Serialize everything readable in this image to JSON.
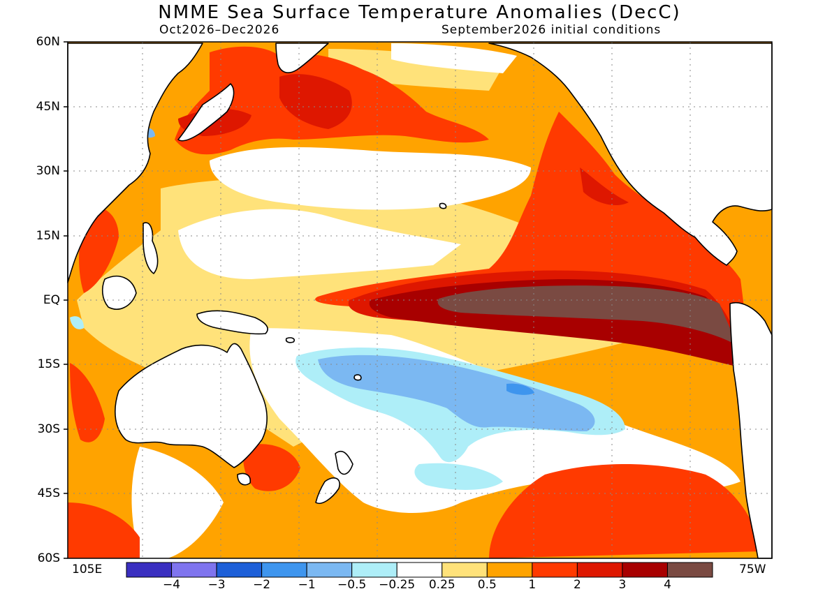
{
  "title": "NMME Sea Surface Temperature Anomalies (DecC)",
  "subtitle_left": "Oct2026–Dec2026",
  "subtitle_right": "September2026 initial conditions",
  "axes": {
    "lat_labels": [
      "60N",
      "45N",
      "30N",
      "15N",
      "EQ",
      "15S",
      "30S",
      "45S",
      "60S"
    ],
    "lat_values": [
      60,
      45,
      30,
      15,
      0,
      -15,
      -30,
      -45,
      -60
    ],
    "lon_left_label": "105E",
    "lon_right_label": "75W",
    "lon_range": [
      105,
      285
    ],
    "lat_range": [
      -60,
      60
    ],
    "grid": true
  },
  "colorbar": {
    "labels": [
      "−4",
      "−3",
      "−2",
      "−1",
      "−0.5",
      "−0.25",
      "0.25",
      "0.5",
      "1",
      "2",
      "3",
      "4"
    ],
    "colors": [
      "#3a2fc0",
      "#7f74ee",
      "#1d5fd8",
      "#3e95ee",
      "#7bb8f2",
      "#aeeef8",
      "#ffffff",
      "#ffe27a",
      "#ffa300",
      "#ff3a00",
      "#de1700",
      "#a80000",
      "#7a4a42"
    ]
  },
  "legend": {
    "extreme_warm": "#7a4a42",
    "very_warm": "#a80000",
    "warm": "#ff3a00",
    "moderate": "#ffa300",
    "slight": "#ffe27a",
    "neutral": "#ffffff",
    "cool": "#aeeef8",
    "colder": "#7bb8f2",
    "coldest": "#3e95ee"
  }
}
